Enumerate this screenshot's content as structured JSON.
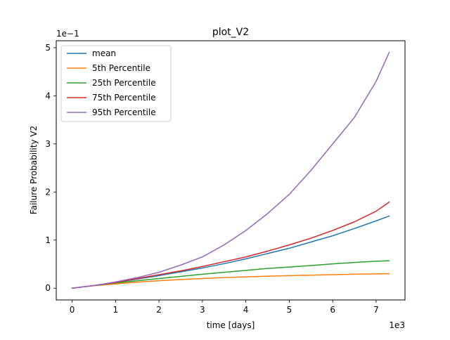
{
  "chart_data": {
    "type": "line",
    "title": "plot_V2",
    "xlabel": "time [days]",
    "ylabel": "Failure Probability V2",
    "x_offset_label": "1e3",
    "y_offset_label": "1e−1",
    "xlim": [
      -0.365,
      7.665
    ],
    "ylim": [
      -0.245,
      5.145
    ],
    "xticks": [
      0,
      1,
      2,
      3,
      4,
      5,
      6,
      7
    ],
    "xtick_labels": [
      "0",
      "1",
      "2",
      "3",
      "4",
      "5",
      "6",
      "7"
    ],
    "yticks": [
      0,
      1,
      2,
      3,
      4,
      5
    ],
    "ytick_labels": [
      "0",
      "1",
      "2",
      "3",
      "4",
      "5"
    ],
    "grid": false,
    "legend_position": "top-left",
    "x": [
      0,
      0.5,
      1,
      1.5,
      2,
      2.5,
      3,
      3.5,
      4,
      4.5,
      5,
      5.5,
      6,
      6.5,
      7,
      7.3
    ],
    "series": [
      {
        "name": "mean",
        "color": "#1f77b4",
        "values": [
          0,
          0.055,
          0.12,
          0.19,
          0.26,
          0.34,
          0.42,
          0.51,
          0.61,
          0.72,
          0.83,
          0.96,
          1.09,
          1.24,
          1.4,
          1.5
        ]
      },
      {
        "name": "5th Percentile",
        "color": "#ff7f0e",
        "values": [
          0,
          0.05,
          0.09,
          0.125,
          0.155,
          0.18,
          0.2,
          0.22,
          0.235,
          0.25,
          0.26,
          0.27,
          0.28,
          0.29,
          0.298,
          0.3
        ]
      },
      {
        "name": "25th Percentile",
        "color": "#2ca02c",
        "values": [
          0,
          0.055,
          0.11,
          0.155,
          0.2,
          0.245,
          0.29,
          0.33,
          0.37,
          0.41,
          0.44,
          0.47,
          0.505,
          0.535,
          0.56,
          0.57
        ]
      },
      {
        "name": "75th Percentile",
        "color": "#d62728",
        "values": [
          0,
          0.055,
          0.12,
          0.2,
          0.28,
          0.36,
          0.45,
          0.55,
          0.65,
          0.77,
          0.9,
          1.04,
          1.2,
          1.38,
          1.6,
          1.79
        ]
      },
      {
        "name": "95th Percentile",
        "color": "#9467bd",
        "values": [
          0,
          0.055,
          0.13,
          0.22,
          0.33,
          0.48,
          0.65,
          0.9,
          1.2,
          1.55,
          1.95,
          2.45,
          3.0,
          3.55,
          4.3,
          4.9
        ]
      }
    ]
  }
}
